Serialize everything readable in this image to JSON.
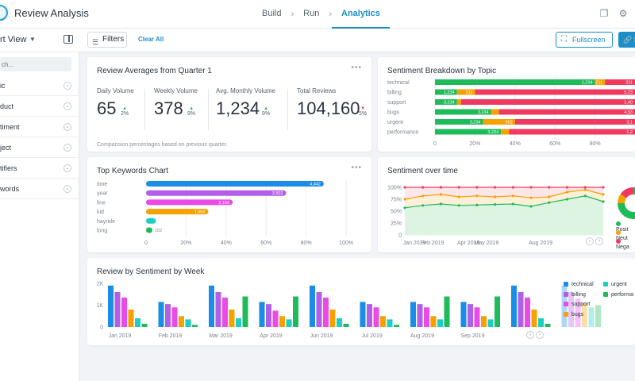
{
  "app": {
    "title": "Review Analysis"
  },
  "nav": {
    "steps": [
      "Build",
      "Run",
      "Analytics"
    ],
    "active": "Analytics"
  },
  "toolbar": {
    "view_label": "rt View",
    "filters_label": "Filters",
    "clear_all_label": "Clear All",
    "fullscreen_label": "Fullscreen",
    "share_label": "S"
  },
  "sidebar": {
    "search_placeholder": "ch...",
    "items": [
      "ic",
      "duct",
      "timent",
      "ject",
      "tifiers",
      "words"
    ]
  },
  "kpis": {
    "title": "Review Averages from Quarter 1",
    "items": [
      {
        "label": "Daily Volume",
        "value": "65",
        "delta": "2%",
        "direction": "up"
      },
      {
        "label": "Weekly Volume",
        "value": "378",
        "delta": "9%",
        "direction": "up"
      },
      {
        "label": "Avg. Monthly Volume",
        "value": "1,234",
        "delta": "9%",
        "direction": "up"
      },
      {
        "label": "Total Reviews",
        "value": "104,160",
        "delta": "5%",
        "direction": "down"
      }
    ],
    "note": "Comparision percentages based on previous quarter."
  },
  "colors": {
    "green": "#1fbb5a",
    "orange": "#f5a100",
    "red": "#f0395e",
    "blue": "#1a8de9",
    "purple": "#b25ee8",
    "magenta": "#e94be4",
    "teal": "#1ccfc0",
    "accent": "#1c8fc8"
  },
  "chart_data": [
    {
      "id": "sentiment_breakdown",
      "type": "bar",
      "orientation": "horizontal-stacked",
      "title": "Sentiment Breakdown by Topic",
      "categories": [
        "technical",
        "billing",
        "support",
        "bugs",
        "urgent",
        "performance"
      ],
      "series": [
        {
          "color": "#1fbb5a",
          "values": [
            80,
            11,
            11,
            28,
            24,
            33
          ],
          "labels": [
            "1,234",
            "1,234",
            "3,234",
            "3,234",
            "3,234",
            "3,234"
          ]
        },
        {
          "color": "#f5a100",
          "values": [
            5,
            9,
            2,
            4,
            16,
            4
          ],
          "labels": [
            "211",
            "211",
            "12",
            "211",
            "962",
            "462"
          ]
        },
        {
          "color": "#f0395e",
          "values": [
            15,
            80,
            87,
            68,
            60,
            63
          ],
          "labels": [
            "211",
            "5,73",
            "1,40",
            "4,53",
            "3,1",
            "1,2"
          ]
        }
      ],
      "x_ticks": [
        "0",
        "20%",
        "40%",
        "60%",
        "80%"
      ],
      "xlim": [
        0,
        100
      ]
    },
    {
      "id": "top_keywords",
      "type": "bar",
      "orientation": "horizontal",
      "title": "Top Keywords Chart",
      "categories": [
        "time",
        "year",
        "line",
        "kid",
        "hayride",
        "long"
      ],
      "values": [
        4442,
        3502,
        2166,
        1556,
        248,
        102
      ],
      "labels": [
        "4,442",
        "3,502",
        "2,166",
        "1,556",
        "",
        "102"
      ],
      "colors": [
        "#1a8de9",
        "#b25ee8",
        "#e94be4",
        "#f5a100",
        "#1ccfc0",
        "#1fbb5a"
      ],
      "x_ticks": [
        "0",
        "20%",
        "40%",
        "60%",
        "80%",
        "100%"
      ],
      "xlim": [
        0,
        5000
      ]
    },
    {
      "id": "sentiment_over_time",
      "type": "line",
      "title": "Sentiment over time",
      "x": [
        "Jan 2019",
        "Feb 2019",
        "Mar 2019",
        "Apr 2019",
        "May 2019",
        "Jun 2019",
        "Jul 2019",
        "Aug 2019",
        "Sep 2019",
        "Oct 2019",
        "Nov 2019",
        "Dec 2019"
      ],
      "x_tick_labels": [
        "Jan 2019",
        "Feb 2019",
        "Apr 2019",
        "May 2019",
        "Aug 2019"
      ],
      "series": [
        {
          "color": "#f0395e",
          "values": [
            100,
            100,
            100,
            100,
            100,
            100,
            100,
            100,
            100,
            100,
            100,
            100
          ]
        },
        {
          "color": "#f5a100",
          "values": [
            75,
            82,
            85,
            80,
            82,
            80,
            82,
            78,
            80,
            90,
            95,
            85
          ]
        },
        {
          "color": "#1fbb5a",
          "values": [
            57,
            62,
            65,
            62,
            63,
            64,
            65,
            60,
            68,
            75,
            82,
            70
          ]
        }
      ],
      "y_ticks": [
        "0",
        "25%",
        "50%",
        "75%",
        "100%"
      ],
      "ylim": [
        0,
        100
      ]
    },
    {
      "id": "sentiment_donut",
      "type": "pie",
      "legend": [
        "Posit",
        "Neut",
        "Nega"
      ],
      "colors": [
        "#1fbb5a",
        "#f5a100",
        "#f0395e"
      ],
      "values": [
        75,
        10,
        15
      ]
    },
    {
      "id": "review_by_week",
      "type": "bar",
      "title": "Review by Sentiment by Week",
      "categories": [
        "Jan 2019",
        "Feb 2019",
        "Mar 2019",
        "Apr 2019",
        "May 2019",
        "Jun 2019",
        "Jul 2019",
        "Aug 2019",
        "Sep 2019",
        "Oct 2019"
      ],
      "x_tick_labels": [
        "Jan 2019",
        "Feb 2019",
        "Mar 2019",
        "Apr 2019",
        "Jun 2019",
        "Jul 2019",
        "Aug 2019",
        "Sep 2019"
      ],
      "series": [
        {
          "name": "technical",
          "color": "#1a8de9",
          "values": [
            1900,
            1150,
            1900,
            1150,
            1900,
            1150,
            1150,
            1150,
            1900,
            1900
          ]
        },
        {
          "name": "billing",
          "color": "#b25ee8",
          "values": [
            1600,
            1050,
            1600,
            1050,
            1600,
            1050,
            1050,
            1050,
            1600,
            1600
          ]
        },
        {
          "name": "support",
          "color": "#e94be4",
          "values": [
            1350,
            900,
            1350,
            750,
            1350,
            900,
            900,
            900,
            1350,
            1300
          ]
        },
        {
          "name": "bugs",
          "color": "#f5a100",
          "values": [
            800,
            500,
            800,
            500,
            800,
            500,
            500,
            500,
            800,
            1100
          ]
        },
        {
          "name": "urgent",
          "color": "#1ccfc0",
          "values": [
            400,
            350,
            400,
            350,
            400,
            350,
            350,
            350,
            400,
            900
          ]
        },
        {
          "name": "performa",
          "color": "#1fbb5a",
          "values": [
            150,
            100,
            1400,
            1400,
            150,
            100,
            1400,
            1400,
            150,
            1000
          ]
        }
      ],
      "y_ticks": [
        "0",
        "1K",
        "2K"
      ],
      "ylim": [
        0,
        2000
      ]
    }
  ]
}
